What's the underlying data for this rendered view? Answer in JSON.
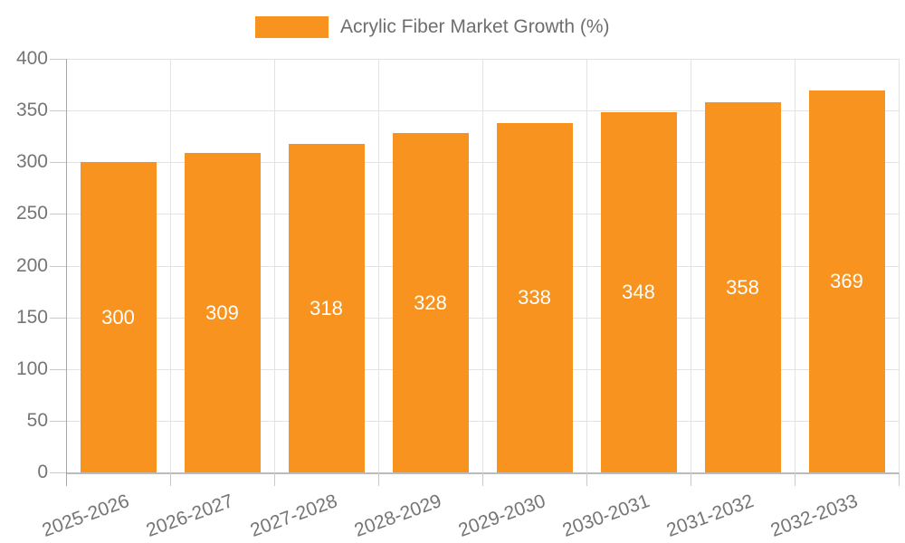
{
  "legend": {
    "label": "Acrylic Fiber Market Growth (%)"
  },
  "colors": {
    "bar": "#F7931E",
    "grid": "#E3E3E3",
    "axis_y_line": "#A6A6A6",
    "axis_x_line": "#BBBBBB",
    "tick": "#C9C9C9",
    "axis_text": "#757575",
    "bar_label": "#FFFFFF",
    "legend_text": "#6E6E6E"
  },
  "chart_data": {
    "type": "bar",
    "title": "Acrylic Fiber Market Growth (%)",
    "categories": [
      "2025-2026",
      "2026-2027",
      "2027-2028",
      "2028-2029",
      "2029-2030",
      "2030-2031",
      "2031-2032",
      "2032-2033"
    ],
    "values": [
      300,
      309,
      318,
      328,
      338,
      348,
      358,
      369
    ],
    "xlabel": "",
    "ylabel": "",
    "ylim": [
      0,
      400
    ],
    "ytick_step": 50,
    "grid": true,
    "legend_position": "top",
    "value_labels": "inside-middle",
    "x_label_rotation_deg": -20
  }
}
